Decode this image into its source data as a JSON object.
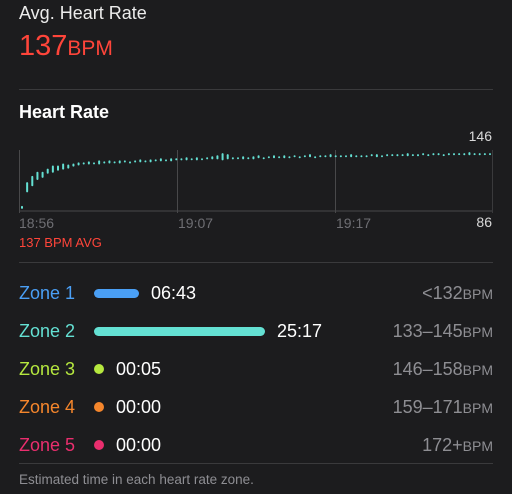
{
  "summary": {
    "label": "Avg. Heart Rate",
    "value": "137",
    "unit": "BPM"
  },
  "heart_rate": {
    "title": "Heart Rate",
    "max_label": "146",
    "min_label": "86",
    "avg_label": "137 BPM AVG"
  },
  "chart_data": {
    "type": "bar",
    "x_ticks": [
      "18:56",
      "19:07",
      "19:17"
    ],
    "ylim": [
      86,
      146
    ],
    "y_ticks": [
      "146",
      "86"
    ],
    "grid": true,
    "ranges": [
      [
        88,
        91
      ],
      [
        104,
        114
      ],
      [
        110,
        120
      ],
      [
        116,
        124
      ],
      [
        118,
        124
      ],
      [
        122,
        127
      ],
      [
        123,
        130
      ],
      [
        125,
        130
      ],
      [
        126,
        132
      ],
      [
        127,
        131
      ],
      [
        129,
        132
      ],
      [
        130,
        133
      ],
      [
        131,
        133
      ],
      [
        131,
        134
      ],
      [
        132,
        133
      ],
      [
        131,
        135
      ],
      [
        132,
        134
      ],
      [
        132,
        135
      ],
      [
        133,
        134
      ],
      [
        132,
        135
      ],
      [
        133,
        135
      ],
      [
        132,
        134
      ],
      [
        133,
        135
      ],
      [
        133,
        136
      ],
      [
        134,
        135
      ],
      [
        133,
        136
      ],
      [
        134,
        136
      ],
      [
        134,
        137
      ],
      [
        135,
        136
      ],
      [
        134,
        137
      ],
      [
        135,
        137
      ],
      [
        135,
        137
      ],
      [
        135,
        138
      ],
      [
        136,
        137
      ],
      [
        135,
        138
      ],
      [
        136,
        137
      ],
      [
        136,
        138
      ],
      [
        136,
        139
      ],
      [
        136,
        140
      ],
      [
        135,
        142
      ],
      [
        136,
        141
      ],
      [
        136,
        138
      ],
      [
        137,
        138
      ],
      [
        136,
        139
      ],
      [
        137,
        138
      ],
      [
        136,
        139
      ],
      [
        137,
        140
      ],
      [
        137,
        138
      ],
      [
        137,
        139
      ],
      [
        137,
        140
      ],
      [
        138,
        139
      ],
      [
        137,
        140
      ],
      [
        138,
        139
      ],
      [
        138,
        140
      ],
      [
        137,
        139
      ],
      [
        138,
        140
      ],
      [
        138,
        141
      ],
      [
        138,
        139
      ],
      [
        138,
        140
      ],
      [
        139,
        140
      ],
      [
        138,
        141
      ],
      [
        139,
        140
      ],
      [
        138,
        140
      ],
      [
        139,
        140
      ],
      [
        138,
        141
      ],
      [
        139,
        140
      ],
      [
        138,
        140
      ],
      [
        138,
        140
      ],
      [
        139,
        141
      ],
      [
        138,
        141
      ],
      [
        139,
        140
      ],
      [
        139,
        141
      ],
      [
        140,
        141
      ],
      [
        139,
        141
      ],
      [
        140,
        141
      ],
      [
        139,
        142
      ],
      [
        140,
        141
      ],
      [
        139,
        141
      ],
      [
        140,
        142
      ],
      [
        140,
        141
      ],
      [
        140,
        142
      ],
      [
        140,
        142
      ],
      [
        140,
        141
      ],
      [
        140,
        142
      ],
      [
        140,
        142
      ],
      [
        141,
        142
      ],
      [
        140,
        142
      ],
      [
        140,
        143
      ],
      [
        141,
        142
      ],
      [
        140,
        142
      ],
      [
        141,
        142
      ],
      [
        141,
        142
      ]
    ]
  },
  "zones": [
    {
      "name": "Zone 1",
      "time": "06:43",
      "range": "<132",
      "unit": "BPM",
      "color": "#4a9ff5",
      "fraction": 0.159
    },
    {
      "name": "Zone 2",
      "time": "25:17",
      "range": "133–145",
      "unit": "BPM",
      "color": "#64e0d3",
      "fraction": 0.6
    },
    {
      "name": "Zone 3",
      "time": "00:05",
      "range": "146–158",
      "unit": "BPM",
      "color": "#b6e83f",
      "fraction": 0.0
    },
    {
      "name": "Zone 4",
      "time": "00:00",
      "range": "159–171",
      "unit": "BPM",
      "color": "#f5862c",
      "fraction": 0.0
    },
    {
      "name": "Zone 5",
      "time": "00:00",
      "range": "172+",
      "unit": "BPM",
      "color": "#ea2e6e",
      "fraction": 0.0
    }
  ],
  "footnote": "Estimated time in each heart rate zone."
}
